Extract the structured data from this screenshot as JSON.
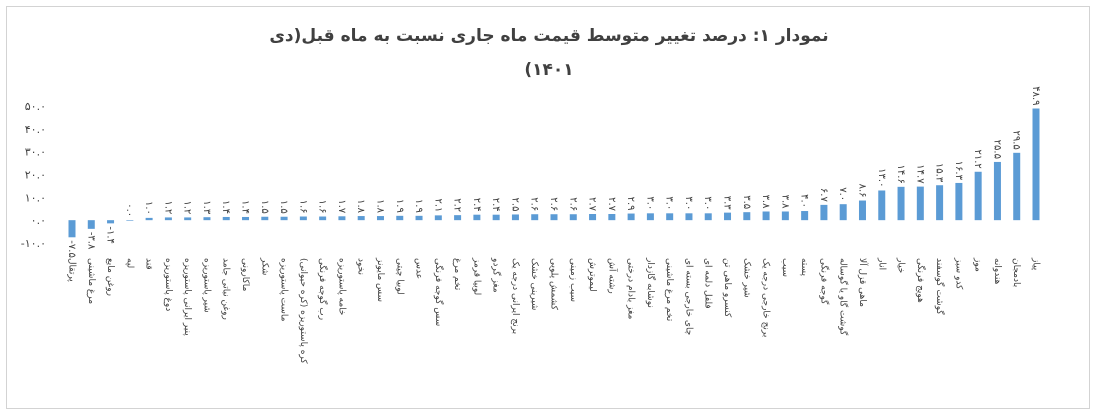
{
  "chart_data": {
    "type": "bar",
    "title": "نمودار ۱: درصد تغییر متوسط قیمت ماه جاری نسبت به ماه قبل(دی",
    "subtitle": "۱۴۰۱)",
    "xlabel": "",
    "ylabel": "",
    "ylim": [
      -10,
      50
    ],
    "yticks": [
      -10,
      0,
      10,
      20,
      30,
      40,
      50
    ],
    "ytick_labels": [
      "-۱۰.۰",
      "۰.۰",
      "۱۰.۰",
      "۲۰.۰",
      "۳۰.۰",
      "۴۰.۰",
      "۵۰.۰"
    ],
    "bar_color": "#5b9bd5",
    "grid": false,
    "legend": "none",
    "categories": [
      "پرتقال",
      "مرغ ماشینی",
      "روغن مایع",
      "لپه",
      "قند",
      "دوغ پاستوریزه",
      "پنیر ایرانی پاستوریزه",
      "شیر پاستوریزه",
      "روغن نباتی جامد",
      "ماکارونی",
      "شکر",
      "ماست پاستوریزه",
      "کره پاستوریزه (کره حیوانی)",
      "رب گوجه فرنگی",
      "خامه پاستوریزه",
      "نخود",
      "سس مایونز",
      "لوبیا چیتی",
      "عدس",
      "سس گوجه فرنگی",
      "تخم مرغ",
      "لوبیا قرمز",
      "مغز گردو",
      "برنج ایرانی درجه یک",
      "شیرینی خشک",
      "کشمش پلویی",
      "سیب زمینی",
      "لیموترش",
      "رشته آش",
      "مغز بادام درختی",
      "نوشابه گازدار",
      "تخم مرغ ماشینی",
      "چای خارجی بسته ای",
      "فلفل دلمه ای",
      "کنسرو ماهی تن",
      "شیر خشک",
      "برنج خارجی درجه یک",
      "سیب",
      "پسته",
      "گوجه فرنگی",
      "گوشت گاو یا گوساله",
      "ماهی قزل آلا",
      "انار",
      "خیار",
      "هویج فرنگی",
      "گوشت گوسفند",
      "کدو سبز",
      "موز",
      "هندوانه",
      "بادمجان",
      "پیاز"
    ],
    "values": [
      -7.5,
      -3.8,
      -1.4,
      0.0,
      1.0,
      1.2,
      1.2,
      1.3,
      1.4,
      1.4,
      1.5,
      1.5,
      1.6,
      1.6,
      1.7,
      1.8,
      1.8,
      1.9,
      1.9,
      2.1,
      2.2,
      2.4,
      2.4,
      2.5,
      2.6,
      2.6,
      2.6,
      2.7,
      2.7,
      2.9,
      3.0,
      3.0,
      3.0,
      3.0,
      3.3,
      3.5,
      3.8,
      3.8,
      4.0,
      6.7,
      7.0,
      8.6,
      13.0,
      14.6,
      14.7,
      15.3,
      16.3,
      21.2,
      25.5,
      29.5,
      48.9
    ],
    "data_labels": [
      "-۷.۵",
      "-۳.۸",
      "-۱.۴",
      "۰.۰",
      "۱.۰",
      "۱.۲",
      "۱.۲",
      "۱.۳",
      "۱.۴",
      "۱.۴",
      "۱.۵",
      "۱.۵",
      "۱.۶",
      "۱.۶",
      "۱.۷",
      "۱.۸",
      "۱.۸",
      "۱.۹",
      "۱.۹",
      "۲.۱",
      "۲.۲",
      "۲.۴",
      "۲.۴",
      "۲.۵",
      "۲.۶",
      "۲.۶",
      "۲.۶",
      "۲.۷",
      "۲.۷",
      "۲.۹",
      "۳.۰",
      "۳.۰",
      "۳.۰",
      "۳.۰",
      "۳.۳",
      "۳.۵",
      "۳.۸",
      "۳.۸",
      "۴.۰",
      "۶.۷",
      "۷.۰",
      "۸.۶",
      "۱۳.۰",
      "۱۴.۶",
      "۱۴.۷",
      "۱۵.۳",
      "۱۶.۳",
      "۲۱.۲",
      "۲۵.۵",
      "۲۹.۵",
      "۴۸.۹"
    ]
  }
}
